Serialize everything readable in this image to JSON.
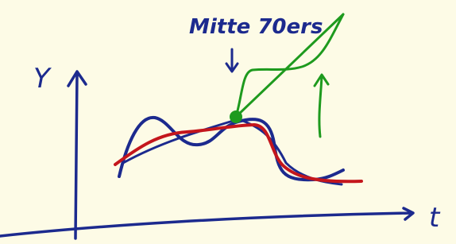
{
  "axes": {
    "y_label": "Y",
    "x_label": "t"
  },
  "annotation": "Mitte 70ers"
}
